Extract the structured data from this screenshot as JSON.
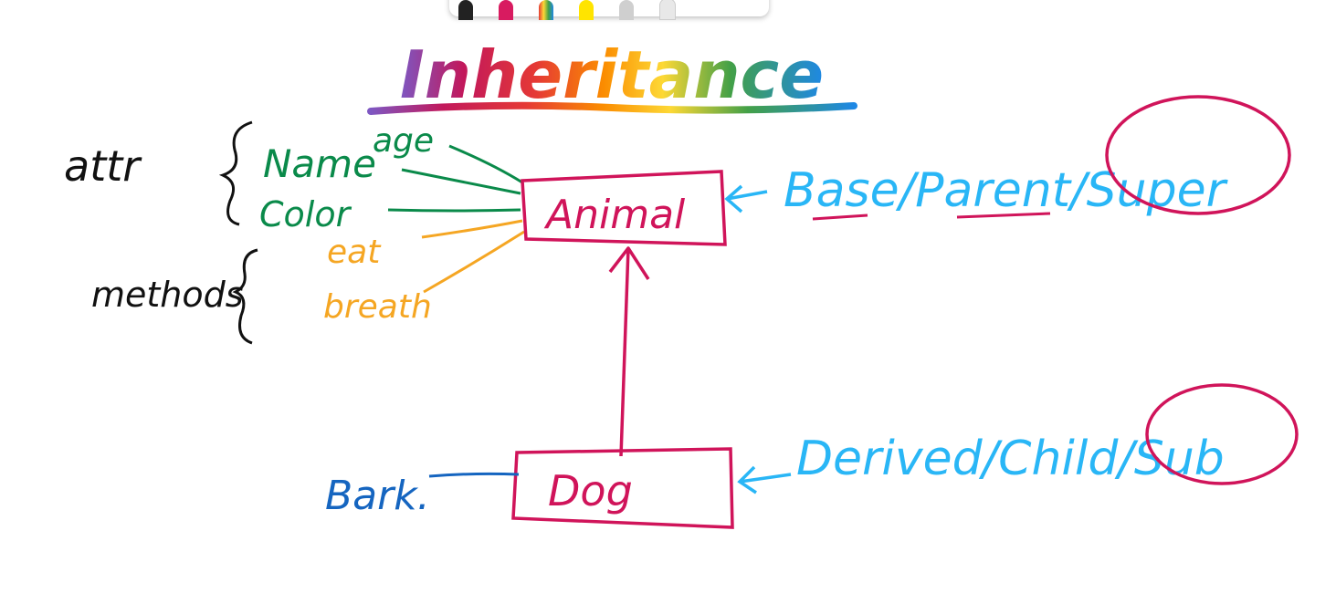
{
  "title": "Inheritance",
  "labels": {
    "attr": "attr",
    "methods": "methods",
    "name": "Name",
    "age": "age",
    "color": "Color",
    "eat": "eat",
    "breath": "breath",
    "animal": "Animal",
    "dog": "Dog",
    "bark": "Bark.",
    "base_terms": "Base/Parent/Super",
    "derived_terms": "Derived/Child/Sub"
  },
  "toolbar": {
    "pens": [
      {
        "name": "black-pen",
        "color": "#222222"
      },
      {
        "name": "pink-pen",
        "color": "#d81b60"
      },
      {
        "name": "rainbow-pen",
        "color": "#7b6cc4"
      },
      {
        "name": "yellow-highlighter",
        "color": "#ffe400"
      },
      {
        "name": "eraser",
        "color": "#bdbdbd"
      },
      {
        "name": "ruler",
        "color": "#e0e0e0"
      }
    ],
    "lasso_icon": "lasso-icon",
    "close_icon": "close-icon"
  },
  "colors": {
    "black": "#111111",
    "green": "#0a8a4a",
    "orange": "#f5a623",
    "crimson": "#d0145a",
    "sky": "#29b6f6",
    "blue": "#1565c0"
  }
}
